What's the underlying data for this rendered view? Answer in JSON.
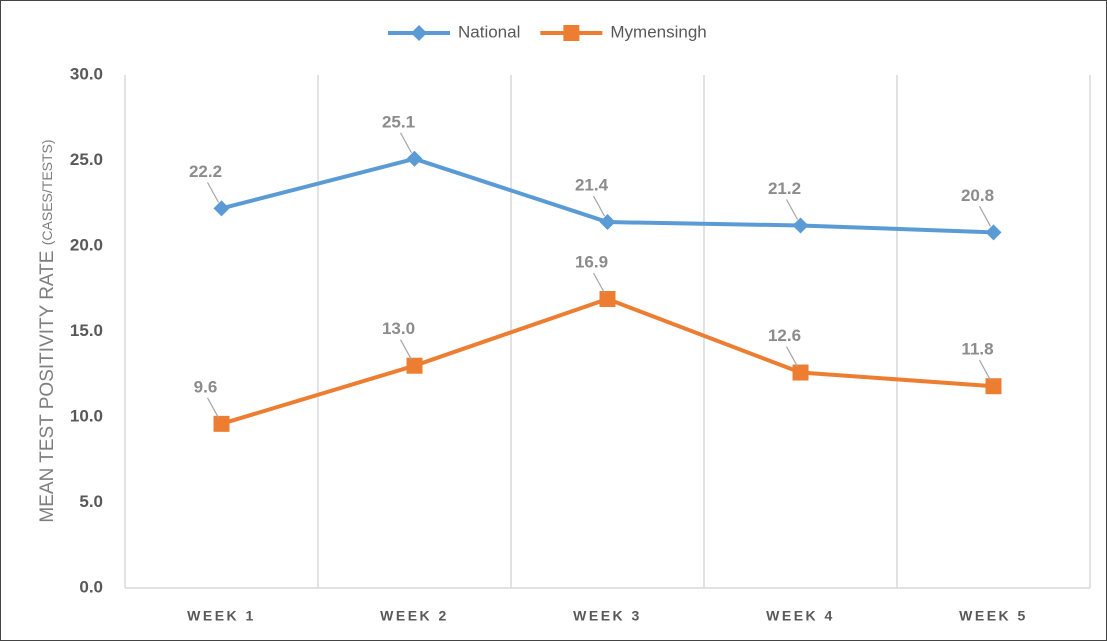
{
  "chart_data": {
    "type": "line",
    "y_label": "MEAN TEST POSITIVITY RATE",
    "y_label_unit": "(CASES/TESTS)",
    "categories": [
      "WEEK 1",
      "WEEK 2",
      "WEEK 3",
      "WEEK 4",
      "WEEK 5"
    ],
    "series": [
      {
        "name": "National",
        "color": "#5b9bd5",
        "marker": "diamond",
        "values": [
          22.2,
          25.1,
          21.4,
          21.2,
          20.8
        ],
        "value_labels": [
          "22.2",
          "25.1",
          "21.4",
          "21.2",
          "20.8"
        ]
      },
      {
        "name": "Mymensingh",
        "color": "#ed7d31",
        "marker": "square",
        "values": [
          9.6,
          13.0,
          16.9,
          12.6,
          11.8
        ],
        "value_labels": [
          "9.6",
          "13.0",
          "16.9",
          "12.6",
          "11.8"
        ]
      }
    ],
    "ylim": [
      0,
      30
    ],
    "yticks": [
      {
        "value": 0,
        "label": "0.0"
      },
      {
        "value": 5,
        "label": "5.0"
      },
      {
        "value": 10,
        "label": "10.0"
      },
      {
        "value": 15,
        "label": "15.0"
      },
      {
        "value": 20,
        "label": "20.0"
      },
      {
        "value": 25,
        "label": "25.0"
      },
      {
        "value": 30,
        "label": "30.0"
      }
    ],
    "grid": true,
    "legend": "top"
  }
}
